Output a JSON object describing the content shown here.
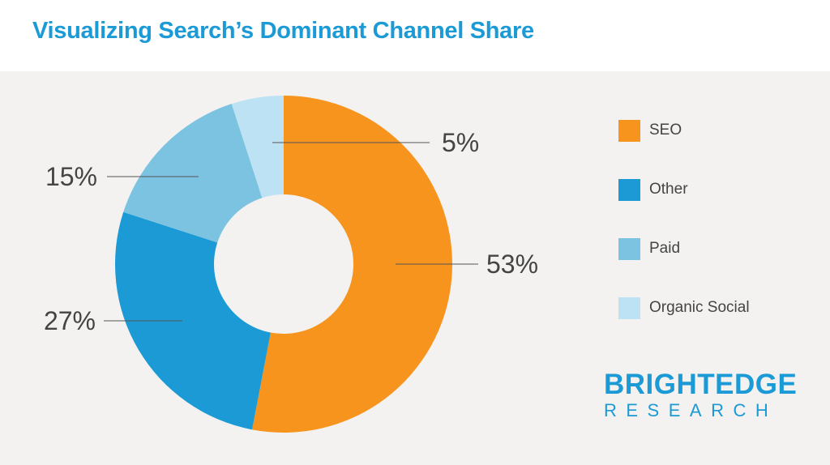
{
  "title": "Visualizing Search’s Dominant Channel Share",
  "brand": {
    "line1": "BRIGHTEDGE",
    "line2": "RESEARCH"
  },
  "chart_data": {
    "type": "pie",
    "variant": "donut",
    "series": [
      {
        "name": "SEO",
        "value": 53,
        "label": "53%",
        "color": "#f7941d"
      },
      {
        "name": "Other",
        "value": 27,
        "label": "27%",
        "color": "#1b9ad6"
      },
      {
        "name": "Paid",
        "value": 15,
        "label": "15%",
        "color": "#7cc3e1"
      },
      {
        "name": "Organic Social",
        "value": 5,
        "label": "5%",
        "color": "#bde2f4"
      }
    ],
    "legend_placement": "right"
  }
}
